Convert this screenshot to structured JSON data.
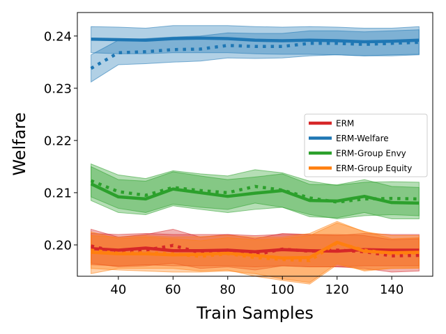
{
  "chart_data": {
    "type": "line",
    "xlabel": "Train Samples",
    "ylabel": "Welfare",
    "xlim": [
      25,
      155
    ],
    "ylim": [
      0.194,
      0.2445
    ],
    "xticks": [
      40,
      60,
      80,
      100,
      120,
      140
    ],
    "yticks": [
      0.2,
      0.21,
      0.22,
      0.23,
      0.24
    ],
    "ytick_labels": [
      "0.20",
      "0.21",
      "0.22",
      "0.23",
      "0.24"
    ],
    "legend_position": "center-right",
    "grid": false,
    "x": [
      30,
      40,
      50,
      60,
      70,
      80,
      90,
      100,
      110,
      120,
      130,
      140,
      150
    ],
    "series": [
      {
        "name": "ERM",
        "color": "#d62728",
        "solid": [
          0.1993,
          0.199,
          0.1994,
          0.1989,
          0.1989,
          0.199,
          0.1987,
          0.1991,
          0.1989,
          0.1988,
          0.1991,
          0.199,
          0.199
        ],
        "solid_low": [
          0.1962,
          0.196,
          0.1962,
          0.196,
          0.196,
          0.196,
          0.1958,
          0.196,
          0.1958,
          0.1958,
          0.196,
          0.196,
          0.196
        ],
        "solid_high": [
          0.2022,
          0.202,
          0.2022,
          0.202,
          0.202,
          0.202,
          0.2018,
          0.202,
          0.202,
          0.2018,
          0.2022,
          0.202,
          0.202
        ],
        "dotted": [
          0.1998,
          0.1986,
          0.199,
          0.1999,
          0.1985,
          0.199,
          0.1981,
          0.1992,
          0.1988,
          0.199,
          0.1987,
          0.1979,
          0.198
        ],
        "dotted_low": [
          0.1965,
          0.1958,
          0.196,
          0.1965,
          0.1955,
          0.1958,
          0.1952,
          0.196,
          0.1958,
          0.1958,
          0.1955,
          0.1948,
          0.195
        ],
        "dotted_high": [
          0.203,
          0.2015,
          0.202,
          0.203,
          0.2015,
          0.202,
          0.2012,
          0.2022,
          0.202,
          0.202,
          0.2018,
          0.201,
          0.2012
        ]
      },
      {
        "name": "ERM-Welfare",
        "color": "#1f77b4",
        "solid": [
          0.2394,
          0.2393,
          0.2392,
          0.2395,
          0.2396,
          0.2395,
          0.2392,
          0.2391,
          0.2392,
          0.2391,
          0.2389,
          0.239,
          0.2392
        ],
        "solid_low": [
          0.2368,
          0.2366,
          0.2366,
          0.2368,
          0.2368,
          0.2368,
          0.2366,
          0.2365,
          0.2365,
          0.2364,
          0.2362,
          0.2362,
          0.2364
        ],
        "solid_high": [
          0.2418,
          0.2417,
          0.2415,
          0.242,
          0.242,
          0.242,
          0.2418,
          0.2417,
          0.2418,
          0.2417,
          0.2415,
          0.2415,
          0.2418
        ],
        "dotted": [
          0.2338,
          0.2368,
          0.237,
          0.2374,
          0.2375,
          0.2382,
          0.238,
          0.238,
          0.2386,
          0.2386,
          0.2384,
          0.2386,
          0.2388
        ],
        "dotted_low": [
          0.2312,
          0.2345,
          0.2347,
          0.235,
          0.2352,
          0.2358,
          0.2357,
          0.2358,
          0.2362,
          0.2364,
          0.2362,
          0.2364,
          0.2365
        ],
        "dotted_high": [
          0.2364,
          0.2392,
          0.2395,
          0.2398,
          0.24,
          0.2406,
          0.2405,
          0.2405,
          0.241,
          0.241,
          0.2408,
          0.241,
          0.2412
        ]
      },
      {
        "name": "ERM-Group Envy",
        "color": "#2ca02c",
        "solid": [
          0.2117,
          0.2092,
          0.2088,
          0.2107,
          0.21,
          0.2093,
          0.2099,
          0.2104,
          0.2085,
          0.2084,
          0.2093,
          0.2081,
          0.208
        ],
        "solid_low": [
          0.2085,
          0.2062,
          0.2058,
          0.2075,
          0.2068,
          0.2062,
          0.2068,
          0.2072,
          0.2054,
          0.2052,
          0.2062,
          0.205,
          0.205
        ],
        "solid_high": [
          0.215,
          0.2125,
          0.2122,
          0.214,
          0.2132,
          0.2125,
          0.213,
          0.2136,
          0.2116,
          0.2115,
          0.2125,
          0.2112,
          0.211
        ],
        "dotted": [
          0.2123,
          0.2102,
          0.2095,
          0.211,
          0.2104,
          0.21,
          0.2112,
          0.2105,
          0.209,
          0.2082,
          0.2088,
          0.2089,
          0.2088
        ],
        "dotted_low": [
          0.2092,
          0.207,
          0.2062,
          0.2078,
          0.2072,
          0.2068,
          0.208,
          0.2072,
          0.2058,
          0.205,
          0.2056,
          0.2058,
          0.2056
        ],
        "dotted_high": [
          0.2155,
          0.2134,
          0.2127,
          0.2142,
          0.2136,
          0.2132,
          0.2144,
          0.2138,
          0.2122,
          0.2114,
          0.212,
          0.2121,
          0.212
        ]
      },
      {
        "name": "ERM-Group Equity",
        "color": "#ff7f0e",
        "solid": [
          0.1986,
          0.1983,
          0.1983,
          0.1981,
          0.1982,
          0.1984,
          0.198,
          0.1975,
          0.1976,
          0.2005,
          0.1988,
          0.1985,
          0.1986
        ],
        "solid_low": [
          0.1955,
          0.1952,
          0.195,
          0.1948,
          0.1948,
          0.195,
          0.1945,
          0.1935,
          0.1928,
          0.1965,
          0.195,
          0.1955,
          0.1955
        ],
        "solid_high": [
          0.2018,
          0.2015,
          0.2018,
          0.2015,
          0.2016,
          0.2018,
          0.2015,
          0.2015,
          0.2022,
          0.2045,
          0.2025,
          0.2018,
          0.2018
        ],
        "dotted": [
          0.199,
          0.1984,
          0.1985,
          0.1983,
          0.1978,
          0.1983,
          0.1976,
          0.1972,
          0.197,
          0.2004,
          0.199,
          0.1983,
          0.1985
        ],
        "dotted_low": [
          0.1945,
          0.1955,
          0.1955,
          0.1955,
          0.195,
          0.1952,
          0.194,
          0.1932,
          0.1925,
          0.1962,
          0.1952,
          0.1955,
          0.1956
        ],
        "dotted_high": [
          0.2025,
          0.2012,
          0.2015,
          0.2012,
          0.2008,
          0.2014,
          0.201,
          0.2012,
          0.2018,
          0.2042,
          0.2026,
          0.2012,
          0.2014
        ]
      }
    ]
  }
}
